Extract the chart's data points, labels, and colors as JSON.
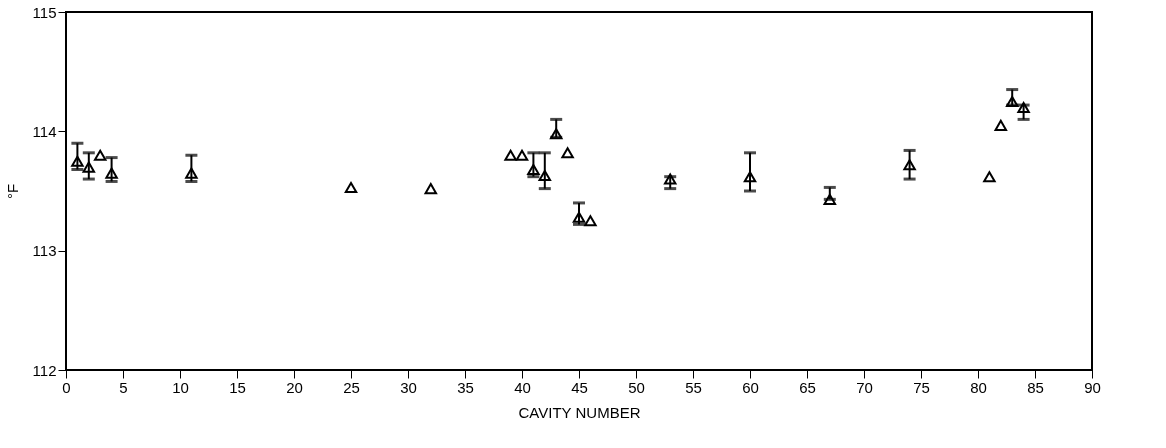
{
  "chart_data": {
    "type": "scatter",
    "xlabel": "CAVITY NUMBER",
    "ylabel": "°F",
    "marker": "triangle",
    "grid": false,
    "color": "#000000",
    "x": [
      1,
      2,
      3,
      4,
      11,
      25,
      32,
      39,
      40,
      41,
      42,
      43,
      44,
      45,
      46,
      53,
      60,
      67,
      74,
      81,
      82,
      83,
      84
    ],
    "values": [
      113.75,
      113.7,
      113.8,
      113.65,
      113.65,
      113.53,
      113.52,
      113.8,
      113.8,
      113.68,
      113.63,
      113.98,
      113.82,
      113.28,
      113.25,
      113.6,
      113.62,
      113.43,
      113.72,
      113.62,
      114.05,
      114.25,
      114.2
    ],
    "errors": [
      [
        113.68,
        113.9
      ],
      [
        113.6,
        113.82
      ],
      null,
      [
        113.58,
        113.78
      ],
      [
        113.58,
        113.8
      ],
      null,
      null,
      null,
      null,
      [
        113.62,
        113.82
      ],
      [
        113.52,
        113.82
      ],
      [
        113.95,
        114.1
      ],
      null,
      [
        113.22,
        113.4
      ],
      null,
      [
        113.52,
        113.62
      ],
      [
        113.5,
        113.82
      ],
      [
        113.43,
        113.53
      ],
      [
        113.6,
        113.84
      ],
      null,
      null,
      [
        114.22,
        114.35
      ],
      [
        114.1,
        114.22
      ]
    ],
    "xlim": [
      0,
      90
    ],
    "xticks": [
      0,
      5,
      10,
      15,
      20,
      25,
      30,
      35,
      40,
      45,
      50,
      55,
      60,
      65,
      70,
      75,
      80,
      85,
      90
    ],
    "ylim": [
      112,
      115
    ],
    "yticks": [
      112,
      113,
      114,
      115
    ]
  }
}
